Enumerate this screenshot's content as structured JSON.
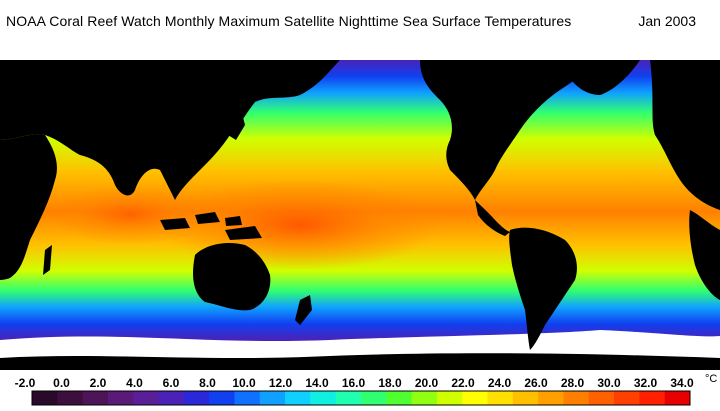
{
  "header": {
    "title": "NOAA Coral Reef Watch Monthly Maximum Satellite Nighttime Sea Surface Temperatures",
    "date": "Jan 2003"
  },
  "legend": {
    "unit": "°C",
    "tick_labels": [
      "-2.0",
      "0.0",
      "2.0",
      "4.0",
      "6.0",
      "8.0",
      "10.0",
      "12.0",
      "14.0",
      "16.0",
      "18.0",
      "20.0",
      "22.0",
      "24.0",
      "26.0",
      "28.0",
      "30.0",
      "32.0",
      "34.0"
    ],
    "colors": [
      "#2a0a2a",
      "#3c0f3c",
      "#4e1458",
      "#5a1a78",
      "#5a1e98",
      "#4a22b8",
      "#2a28d8",
      "#1040f0",
      "#1070ff",
      "#10a0ff",
      "#10d0ff",
      "#10f0e0",
      "#20ffb0",
      "#30ff70",
      "#50ff30",
      "#90ff10",
      "#d0ff00",
      "#ffff00",
      "#ffe000",
      "#ffc000",
      "#ffa000",
      "#ff8000",
      "#ff6000",
      "#ff4000",
      "#ff2000",
      "#e80000"
    ]
  },
  "map_style": {
    "land_color": "#000000",
    "ice_color": "#ffffff"
  }
}
